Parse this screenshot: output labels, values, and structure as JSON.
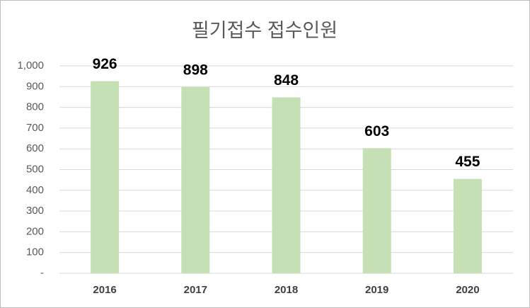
{
  "chart_data": {
    "type": "bar",
    "title": "필기접수 접수인원",
    "categories": [
      "2016",
      "2017",
      "2018",
      "2019",
      "2020"
    ],
    "values": [
      926,
      898,
      848,
      603,
      455
    ],
    "color": "#c5e0b4",
    "ylim": [
      0,
      1000
    ],
    "yticks": [
      {
        "value": 0,
        "label": "-"
      },
      100,
      200,
      300,
      400,
      500,
      600,
      700,
      800,
      900,
      {
        "value": 1000,
        "label": "1,000"
      }
    ],
    "grid": true
  }
}
